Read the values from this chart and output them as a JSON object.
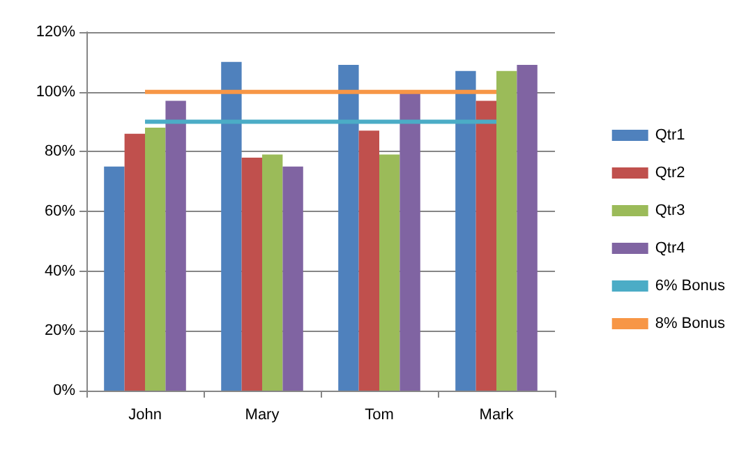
{
  "chart_data": {
    "type": "bar",
    "categories": [
      "John",
      "Mary",
      "Tom",
      "Mark"
    ],
    "series": [
      {
        "name": "Qtr1",
        "color": "#4f81bd",
        "values": [
          75,
          110,
          109,
          107
        ]
      },
      {
        "name": "Qtr2",
        "color": "#c0504d",
        "values": [
          86,
          78,
          87,
          97
        ]
      },
      {
        "name": "Qtr3",
        "color": "#9bbb59",
        "values": [
          88,
          79,
          79,
          107
        ]
      },
      {
        "name": "Qtr4",
        "color": "#8064a2",
        "values": [
          97,
          75,
          100,
          109
        ]
      },
      {
        "name": "6% Bonus",
        "type": "line",
        "color": "#4bacc6",
        "values": [
          90,
          90,
          90,
          90
        ]
      },
      {
        "name": "8% Bonus",
        "type": "line",
        "color": "#f79646",
        "values": [
          100,
          100,
          100,
          100
        ]
      }
    ],
    "ylim": [
      0,
      120
    ],
    "yticks": [
      {
        "value": 0,
        "label": "0%"
      },
      {
        "value": 20,
        "label": "20%"
      },
      {
        "value": 40,
        "label": "40%"
      },
      {
        "value": 60,
        "label": "60%"
      },
      {
        "value": 80,
        "label": "80%"
      },
      {
        "value": 100,
        "label": "100%"
      },
      {
        "value": 120,
        "label": "120%"
      }
    ],
    "grid": "y",
    "legend": "right",
    "marker": "none"
  }
}
